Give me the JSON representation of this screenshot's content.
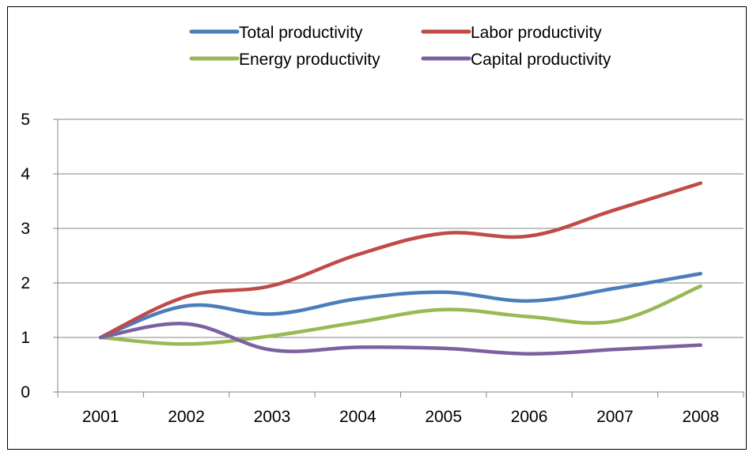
{
  "chart_data": {
    "type": "line",
    "title": "",
    "xlabel": "",
    "ylabel": "",
    "x": [
      "2001",
      "2002",
      "2003",
      "2004",
      "2005",
      "2006",
      "2007",
      "2008"
    ],
    "ylim": [
      0,
      5
    ],
    "yticks": [
      "0",
      "1",
      "2",
      "3",
      "4",
      "5"
    ],
    "grid": true,
    "smooth": true,
    "legend_position": "top",
    "series": [
      {
        "name": "Total productivity",
        "color": "#4a7ebb",
        "values": [
          1.0,
          1.58,
          1.43,
          1.71,
          1.83,
          1.67,
          1.9,
          2.17
        ]
      },
      {
        "name": "Labor productivity",
        "color": "#be4b48",
        "values": [
          1.0,
          1.75,
          1.95,
          2.52,
          2.91,
          2.86,
          3.34,
          3.83
        ]
      },
      {
        "name": "Energy productivity",
        "color": "#98b954",
        "values": [
          1.0,
          0.88,
          1.03,
          1.28,
          1.51,
          1.38,
          1.3,
          1.94
        ]
      },
      {
        "name": "Capital productivity",
        "color": "#7d60a0",
        "values": [
          1.0,
          1.25,
          0.77,
          0.82,
          0.8,
          0.7,
          0.78,
          0.86
        ]
      }
    ]
  }
}
